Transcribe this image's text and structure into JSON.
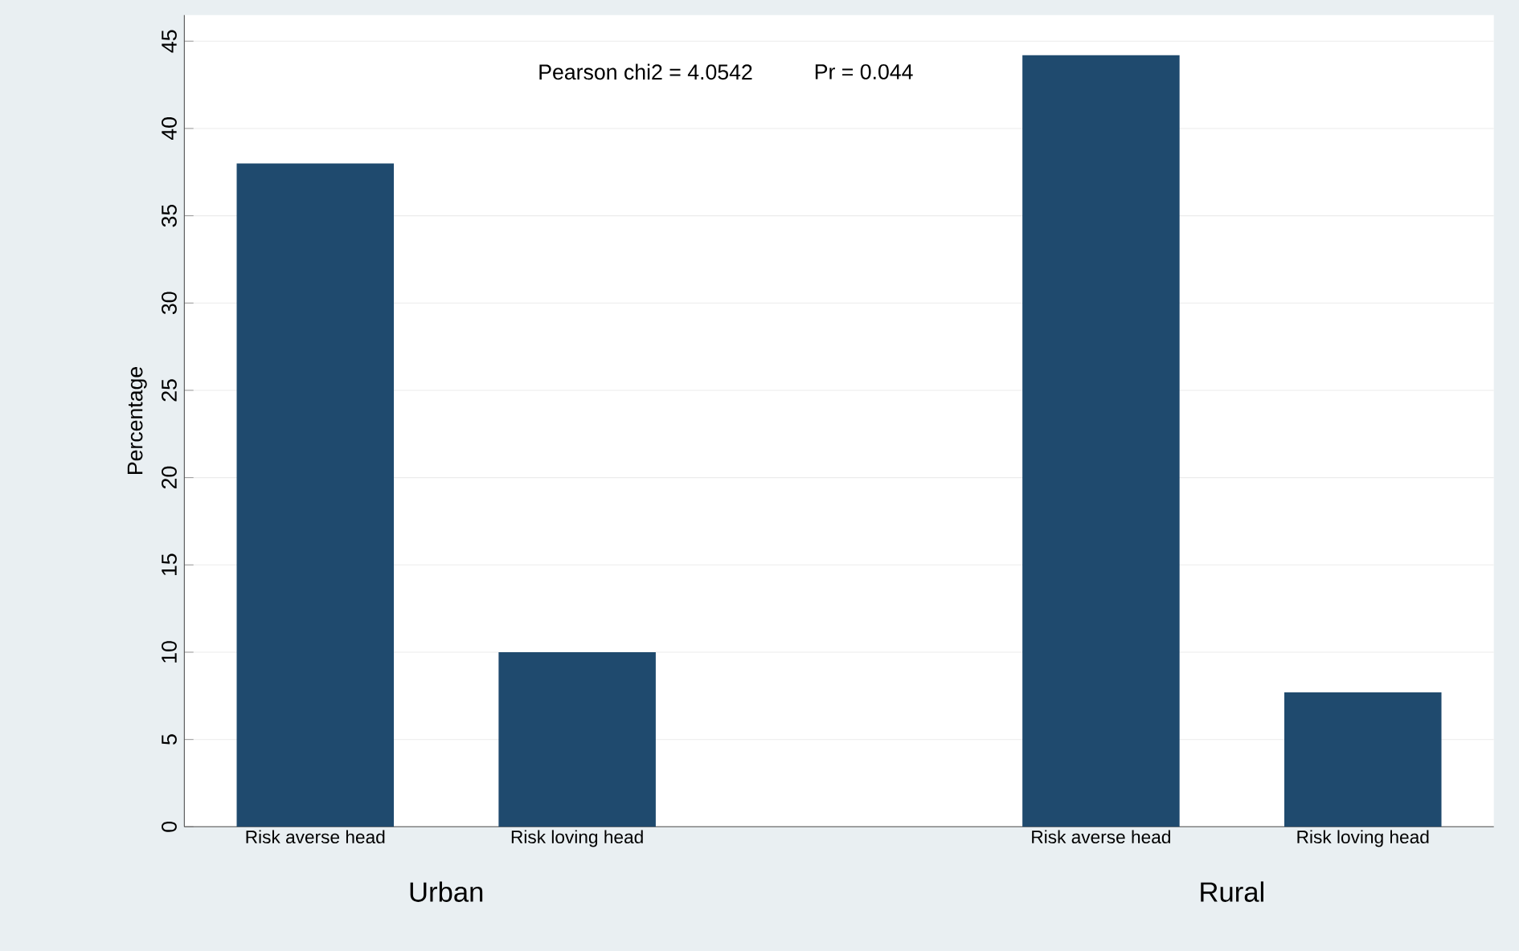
{
  "chart_data": {
    "type": "bar",
    "categories": [
      "Risk averse head",
      "Risk loving head",
      null,
      "Risk averse head",
      "Risk loving head"
    ],
    "values": [
      38,
      10,
      null,
      44.2,
      7.7
    ],
    "color": "#1f4a6e",
    "ylabel": "Percentage",
    "ylim": [
      0,
      46.5
    ],
    "yticks": [
      0,
      5,
      10,
      15,
      20,
      25,
      30,
      35,
      40,
      45
    ],
    "grid": "y",
    "annotations": [
      "Pearson chi2 = 4.0542",
      "Pr = 0.044",
      "Urban",
      "Rural"
    ]
  }
}
